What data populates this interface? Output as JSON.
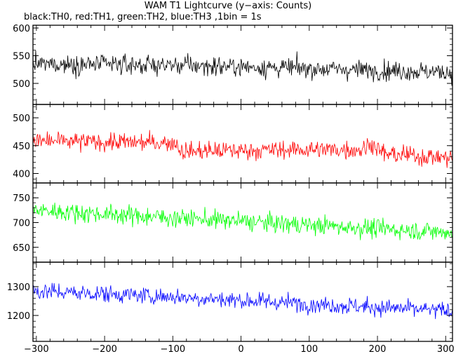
{
  "title": "WAM T1 Lightcurve (y−axis: Counts)",
  "subtitle": "black:TH0, red:TH1, green:TH2, blue:TH3 ,1bin = 1s",
  "chart_data": {
    "type": "line",
    "x_range": [
      -305,
      310
    ],
    "x_ticks": [
      -300,
      -200,
      -100,
      0,
      100,
      200,
      300
    ],
    "x_tick_labels": [
      "−300",
      "−200",
      "−100",
      "0",
      "100",
      "200",
      "300"
    ],
    "bin_seconds": 1,
    "panels": [
      {
        "series": "TH0",
        "color": "#000000",
        "ylim": [
          462,
          605
        ],
        "y_ticks": [
          500,
          550,
          600
        ],
        "y_tick_labels": [
          "500",
          "550",
          "600"
        ],
        "trend": [
          [
            -305,
            535
          ],
          [
            -100,
            533
          ],
          [
            100,
            527
          ],
          [
            310,
            520
          ]
        ],
        "noise": 22
      },
      {
        "series": "TH1",
        "color": "#ff0000",
        "ylim": [
          383,
          524
        ],
        "y_ticks": [
          400,
          450,
          500
        ],
        "y_tick_labels": [
          "400",
          "450",
          "500"
        ],
        "trend": [
          [
            -305,
            458
          ],
          [
            -95,
            455
          ],
          [
            -88,
            440
          ],
          [
            100,
            443
          ],
          [
            180,
            443
          ],
          [
            190,
            455
          ],
          [
            210,
            435
          ],
          [
            310,
            428
          ]
        ],
        "noise": 21
      },
      {
        "series": "TH2",
        "color": "#00ff00",
        "ylim": [
          620,
          780
        ],
        "y_ticks": [
          650,
          700,
          750
        ],
        "y_tick_labels": [
          "650",
          "700",
          "750"
        ],
        "trend": [
          [
            -305,
            725
          ],
          [
            -100,
            710
          ],
          [
            100,
            695
          ],
          [
            310,
            680
          ]
        ],
        "noise": 24
      },
      {
        "series": "TH3",
        "color": "#0000ff",
        "ylim": [
          1110,
          1385
        ],
        "y_ticks": [
          1200,
          1300
        ],
        "y_tick_labels": [
          "1200",
          "1300"
        ],
        "trend": [
          [
            -305,
            1285
          ],
          [
            -100,
            1265
          ],
          [
            100,
            1240
          ],
          [
            310,
            1215
          ]
        ],
        "noise": 38
      }
    ]
  }
}
